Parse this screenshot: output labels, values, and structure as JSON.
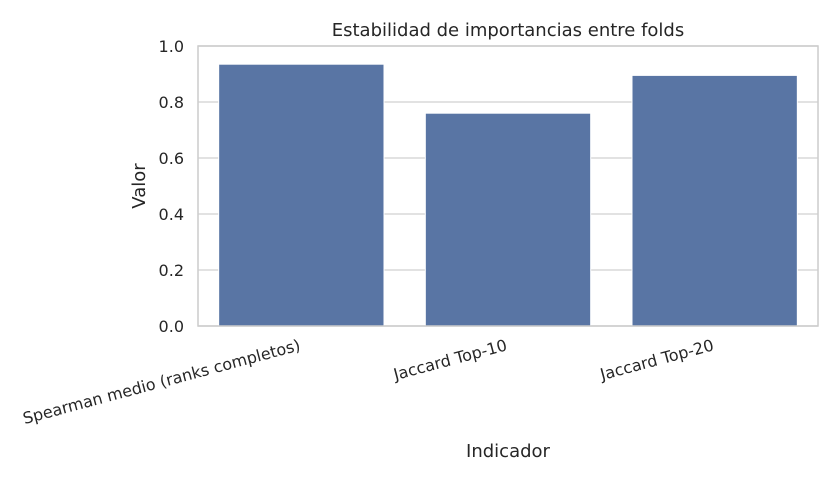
{
  "chart_data": {
    "type": "bar",
    "title": "Estabilidad de importancias entre folds",
    "xlabel": "Indicador",
    "ylabel": "Valor",
    "categories": [
      "Spearman medio (ranks completos)",
      "Jaccard Top-10",
      "Jaccard Top-20"
    ],
    "values": [
      0.935,
      0.76,
      0.895
    ],
    "ylim": [
      0,
      1.0
    ],
    "yticks": [
      "0.0",
      "0.2",
      "0.4",
      "0.6",
      "0.8",
      "1.0"
    ],
    "grid": true,
    "bar_color": "#5975a4",
    "grid_color": "#d9d9d9"
  }
}
